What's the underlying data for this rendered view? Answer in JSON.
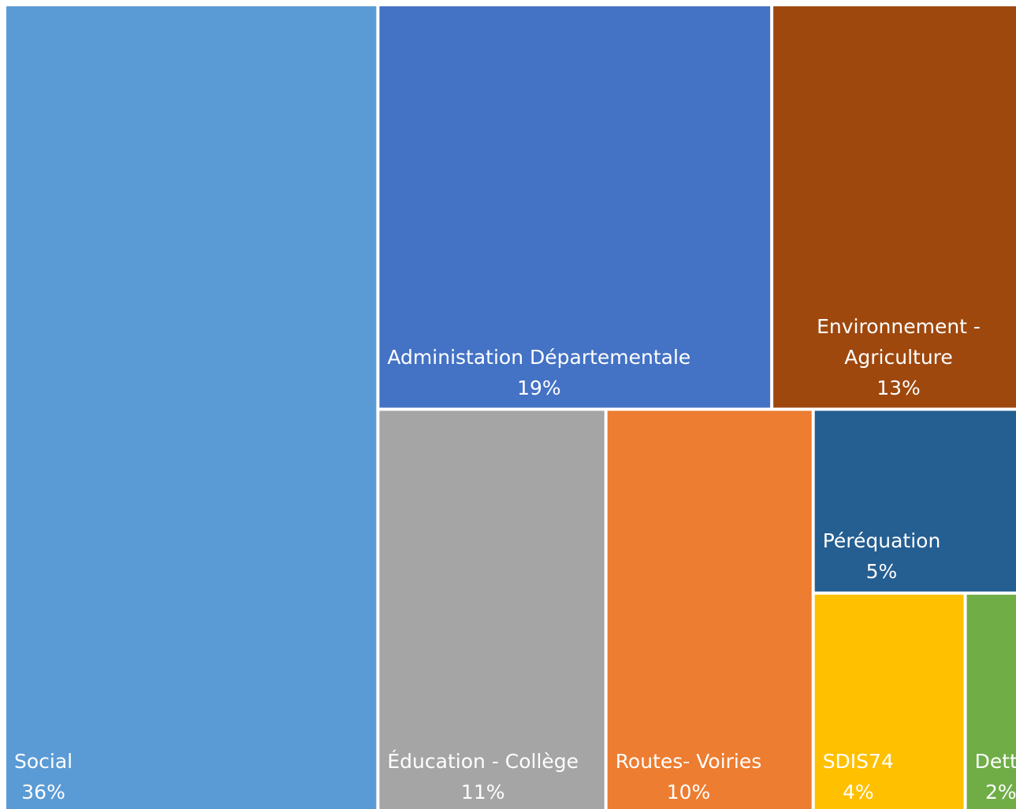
{
  "chart_data": {
    "type": "treemap",
    "categories": [
      "Social",
      "Administation Départementale",
      "Environnement - Agriculture",
      "Éducation - Collège",
      "Routes- Voiries",
      "Péréquation",
      "SDIS74",
      "Dette"
    ],
    "values": [
      36,
      19,
      13,
      11,
      10,
      5,
      4,
      2
    ],
    "value_labels": [
      "36%",
      "19%",
      "13%",
      "11%",
      "10%",
      "5%",
      "4%",
      "2%"
    ],
    "colors": [
      "#5b9bd5",
      "#4472c4",
      "#9e480e",
      "#a5a5a5",
      "#ed7d31",
      "#255e91",
      "#ffc000",
      "#70ad47"
    ]
  }
}
